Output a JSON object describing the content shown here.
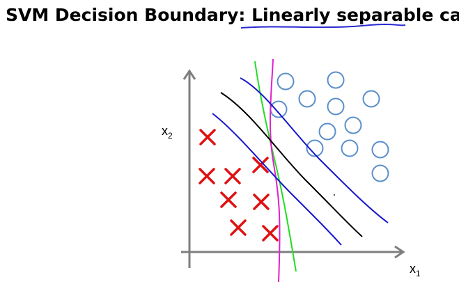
{
  "slide": {
    "title": {
      "before": "SVM Decision Boundary: ",
      "emphasis": "Linearly separable",
      "after": " case"
    },
    "x_label": {
      "base": "x",
      "sub": "1"
    },
    "y_label": {
      "base": "x",
      "sub": "2"
    }
  }
}
